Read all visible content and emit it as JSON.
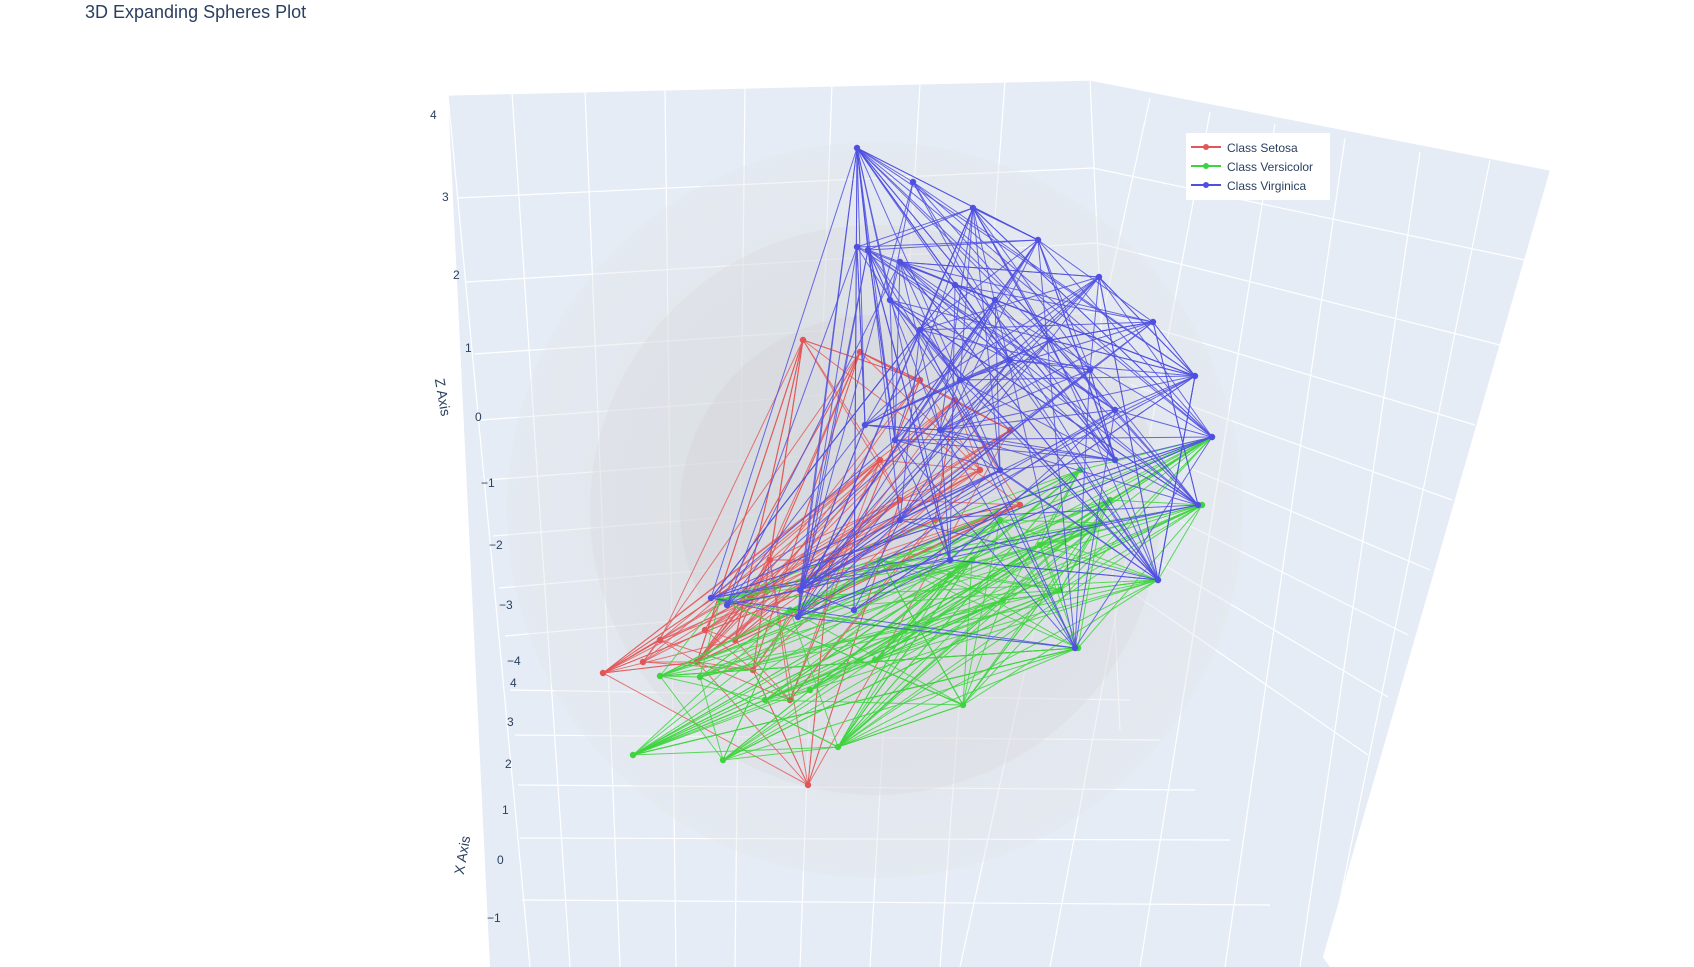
{
  "chart_data": {
    "type": "scatter3d",
    "title": "3D Expanding Spheres Plot",
    "axes": {
      "x": {
        "label": "X Axis",
        "ticks": [
          "4",
          "3",
          "2",
          "1",
          "0",
          "−1"
        ]
      },
      "z": {
        "label": "Z Axis",
        "ticks": [
          "4",
          "3",
          "2",
          "1",
          "0",
          "−1",
          "−2",
          "−3",
          "−4"
        ]
      }
    },
    "grid": true,
    "legend_position": "top-right",
    "spheres": 3,
    "series": [
      {
        "name": "Class Setosa",
        "color": "#e15759",
        "marker": "lines+markers"
      },
      {
        "name": "Class Versicolor",
        "color": "#3fd43f",
        "marker": "lines+markers"
      },
      {
        "name": "Class Virginica",
        "color": "#5050e0",
        "marker": "lines+markers"
      }
    ]
  }
}
